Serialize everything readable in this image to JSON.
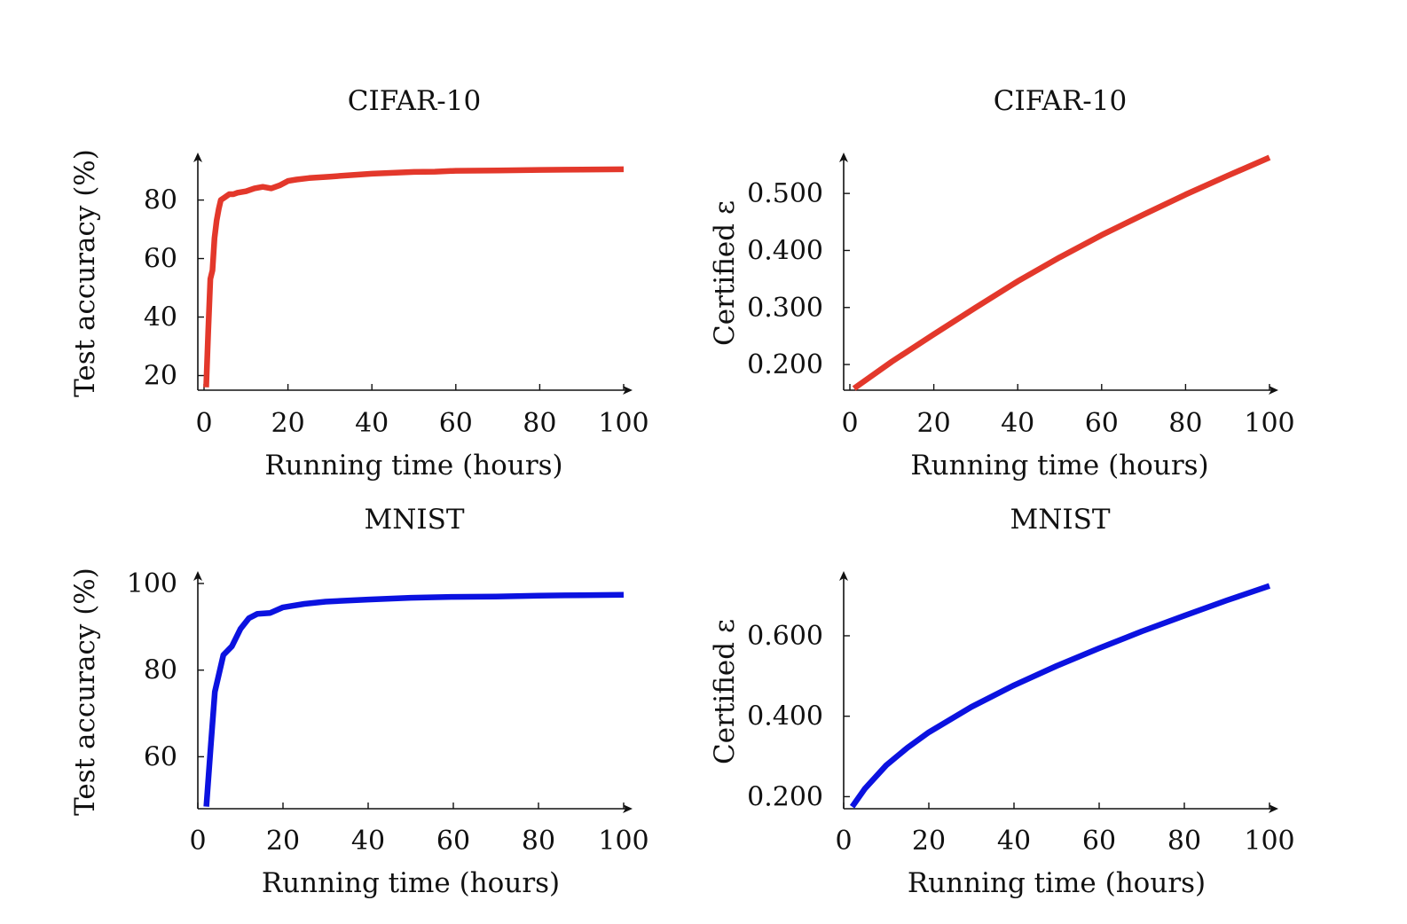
{
  "figure": {
    "series_colors": [
      "#e3382b",
      "#0b12e0"
    ],
    "axis_color": "#111111"
  },
  "chart_data": [
    {
      "type": "line",
      "title": "CIFAR-10",
      "xlabel": "Running time (hours)",
      "ylabel": "Test accuracy (%)",
      "xlim": [
        0,
        100
      ],
      "ylim": [
        15,
        92
      ],
      "xticks": [
        0,
        20,
        40,
        60,
        80,
        100
      ],
      "yticks": [
        20,
        40,
        60,
        80
      ],
      "ytick_labels": [
        "20",
        "40",
        "60",
        "80"
      ],
      "grid": false,
      "series": [
        {
          "name": "CIFAR-10 test accuracy",
          "color": "#e3382b",
          "x": [
            0.5,
            1.0,
            1.5,
            2.0,
            2.5,
            3.0,
            3.5,
            4.0,
            5.0,
            6.0,
            7.0,
            8.0,
            10.0,
            12.0,
            14.0,
            16.0,
            18.0,
            20.0,
            22.0,
            25.0,
            30.0,
            35.0,
            40.0,
            45.0,
            50.0,
            55.0,
            60.0,
            70.0,
            80.0,
            90.0,
            100.0
          ],
          "y": [
            16,
            35,
            53,
            56,
            67,
            73,
            77,
            80,
            81,
            82,
            82,
            82.5,
            83,
            84,
            84.5,
            84,
            85,
            86.5,
            87,
            87.5,
            88,
            88.5,
            89,
            89.3,
            89.6,
            89.7,
            90,
            90.1,
            90.3,
            90.4,
            90.5
          ]
        }
      ]
    },
    {
      "type": "line",
      "title": "CIFAR-10",
      "xlabel": "Running time (hours)",
      "ylabel": "Certified ε",
      "xlim": [
        0,
        100
      ],
      "ylim": [
        0.155,
        0.55
      ],
      "xticks": [
        0,
        20,
        40,
        60,
        80,
        100
      ],
      "yticks": [
        0.2,
        0.3,
        0.4,
        0.5
      ],
      "ytick_labels": [
        "0.200",
        "0.300",
        "0.400",
        "0.500"
      ],
      "grid": false,
      "series": [
        {
          "name": "CIFAR-10 certified epsilon",
          "color": "#e3382b",
          "x": [
            1,
            10,
            20,
            30,
            40,
            50,
            60,
            70,
            80,
            90,
            100
          ],
          "y": [
            0.158,
            0.205,
            0.253,
            0.3,
            0.346,
            0.388,
            0.427,
            0.463,
            0.498,
            0.531,
            0.563
          ]
        }
      ]
    },
    {
      "type": "line",
      "title": "MNIST",
      "xlabel": "Running time (hours)",
      "ylabel": "Test accuracy (%)",
      "xlim": [
        0,
        100
      ],
      "ylim": [
        48,
        100
      ],
      "xticks": [
        0,
        20,
        40,
        60,
        80,
        100
      ],
      "yticks": [
        60,
        80,
        100
      ],
      "ytick_labels": [
        "60",
        "80",
        "100"
      ],
      "grid": false,
      "series": [
        {
          "name": "MNIST test accuracy",
          "color": "#0b12e0",
          "x": [
            2.0,
            3.0,
            4.0,
            6.0,
            8.0,
            10.0,
            12.0,
            14.0,
            17.0,
            20.0,
            25.0,
            30.0,
            40.0,
            50.0,
            60.0,
            70.0,
            80.0,
            90.0,
            100.0
          ],
          "y": [
            48.5,
            62,
            75,
            83.5,
            85.5,
            89.5,
            92,
            93,
            93.2,
            94.5,
            95.3,
            95.8,
            96.3,
            96.7,
            96.9,
            97.0,
            97.2,
            97.3,
            97.4
          ]
        }
      ]
    },
    {
      "type": "line",
      "title": "MNIST",
      "xlabel": "Running time (hours)",
      "ylabel": "Certified ε",
      "xlim": [
        0,
        100
      ],
      "ylim": [
        0.17,
        0.73
      ],
      "xticks": [
        0,
        20,
        40,
        60,
        80,
        100
      ],
      "yticks": [
        0.2,
        0.4,
        0.6
      ],
      "ytick_labels": [
        "0.200",
        "0.400",
        "0.600"
      ],
      "grid": false,
      "series": [
        {
          "name": "MNIST certified epsilon",
          "color": "#0b12e0",
          "x": [
            2,
            5,
            10,
            15,
            20,
            30,
            40,
            50,
            60,
            70,
            80,
            90,
            100
          ],
          "y": [
            0.175,
            0.22,
            0.278,
            0.322,
            0.36,
            0.423,
            0.477,
            0.525,
            0.569,
            0.611,
            0.65,
            0.688,
            0.724
          ]
        }
      ]
    }
  ]
}
